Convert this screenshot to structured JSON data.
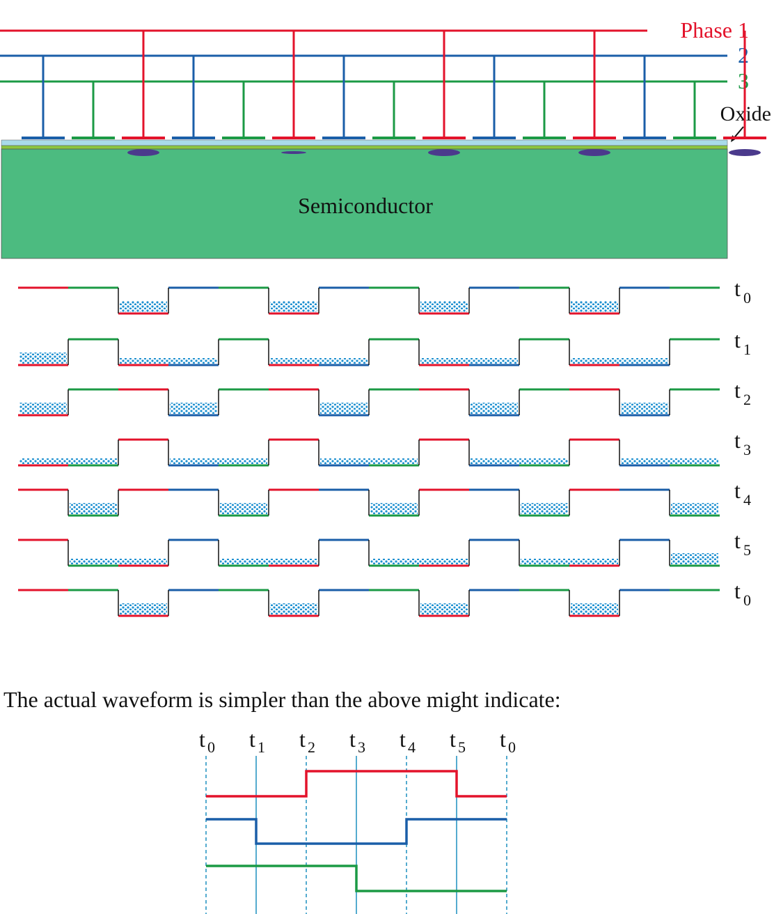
{
  "phases": [
    {
      "label": "Phase 1"
    },
    {
      "label": "2"
    },
    {
      "label": "3"
    }
  ],
  "oxide_label": "Oxide",
  "semiconductor_label": "Semiconductor",
  "time_steps": [
    {
      "t": "t",
      "sub": "0"
    },
    {
      "t": "t",
      "sub": "1"
    },
    {
      "t": "t",
      "sub": "2"
    },
    {
      "t": "t",
      "sub": "3"
    },
    {
      "t": "t",
      "sub": "4"
    },
    {
      "t": "t",
      "sub": "5"
    },
    {
      "t": "t",
      "sub": "0"
    }
  ],
  "caption": "The actual waveform is simpler than the above might indicate:",
  "waveform_labels": [
    {
      "t": "t",
      "sub": "0"
    },
    {
      "t": "t",
      "sub": "1"
    },
    {
      "t": "t",
      "sub": "2"
    },
    {
      "t": "t",
      "sub": "3"
    },
    {
      "t": "t",
      "sub": "4"
    },
    {
      "t": "t",
      "sub": "5"
    },
    {
      "t": "t",
      "sub": "0"
    }
  ]
}
